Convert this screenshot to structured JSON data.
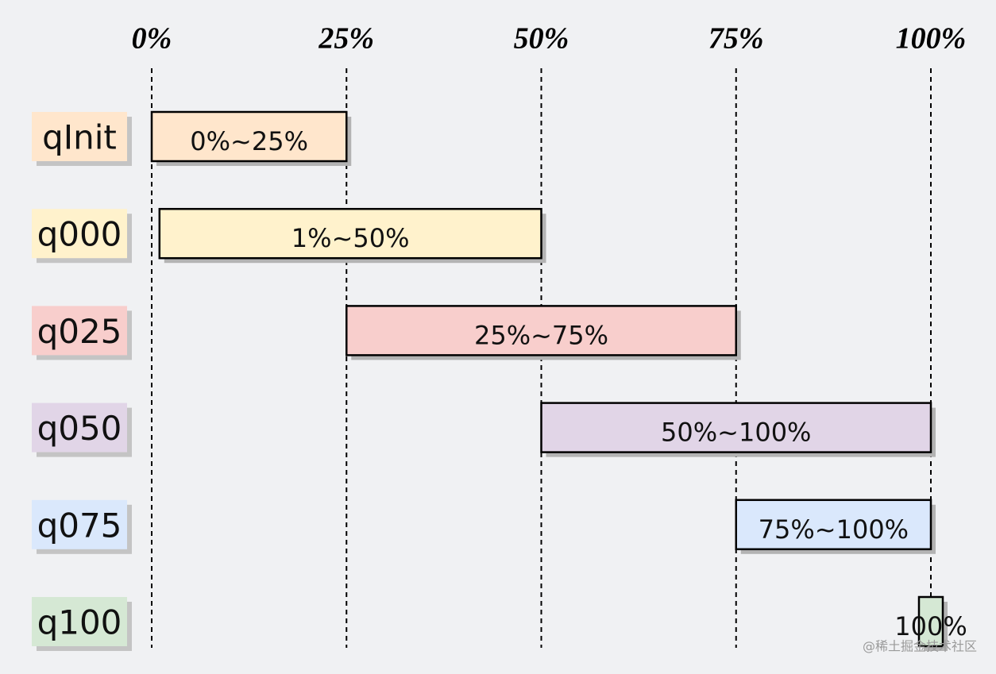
{
  "chart_data": {
    "type": "range-bar",
    "categories": [
      "qInit",
      "q000",
      "q025",
      "q050",
      "q075",
      "q100"
    ],
    "starts": [
      0,
      1,
      25,
      50,
      75,
      100
    ],
    "ends": [
      25,
      50,
      75,
      100,
      100,
      100
    ],
    "value_labels": [
      "0%~25%",
      "1%~50%",
      "25%~75%",
      "50%~100%",
      "75%~100%",
      "100%"
    ],
    "colors": [
      "#ffe6cc",
      "#fff2cc",
      "#f8cecc",
      "#e1d5e7",
      "#dae8fc",
      "#d5e8d4"
    ],
    "xlim": [
      0,
      100
    ],
    "xticks": [
      {
        "value": 0,
        "label": "0%"
      },
      {
        "value": 25,
        "label": "25%"
      },
      {
        "value": 50,
        "label": "50%"
      },
      {
        "value": 75,
        "label": "75%"
      },
      {
        "value": 100,
        "label": "100%"
      }
    ],
    "grid": true,
    "watermark": "@稀土掘金技术社区"
  }
}
